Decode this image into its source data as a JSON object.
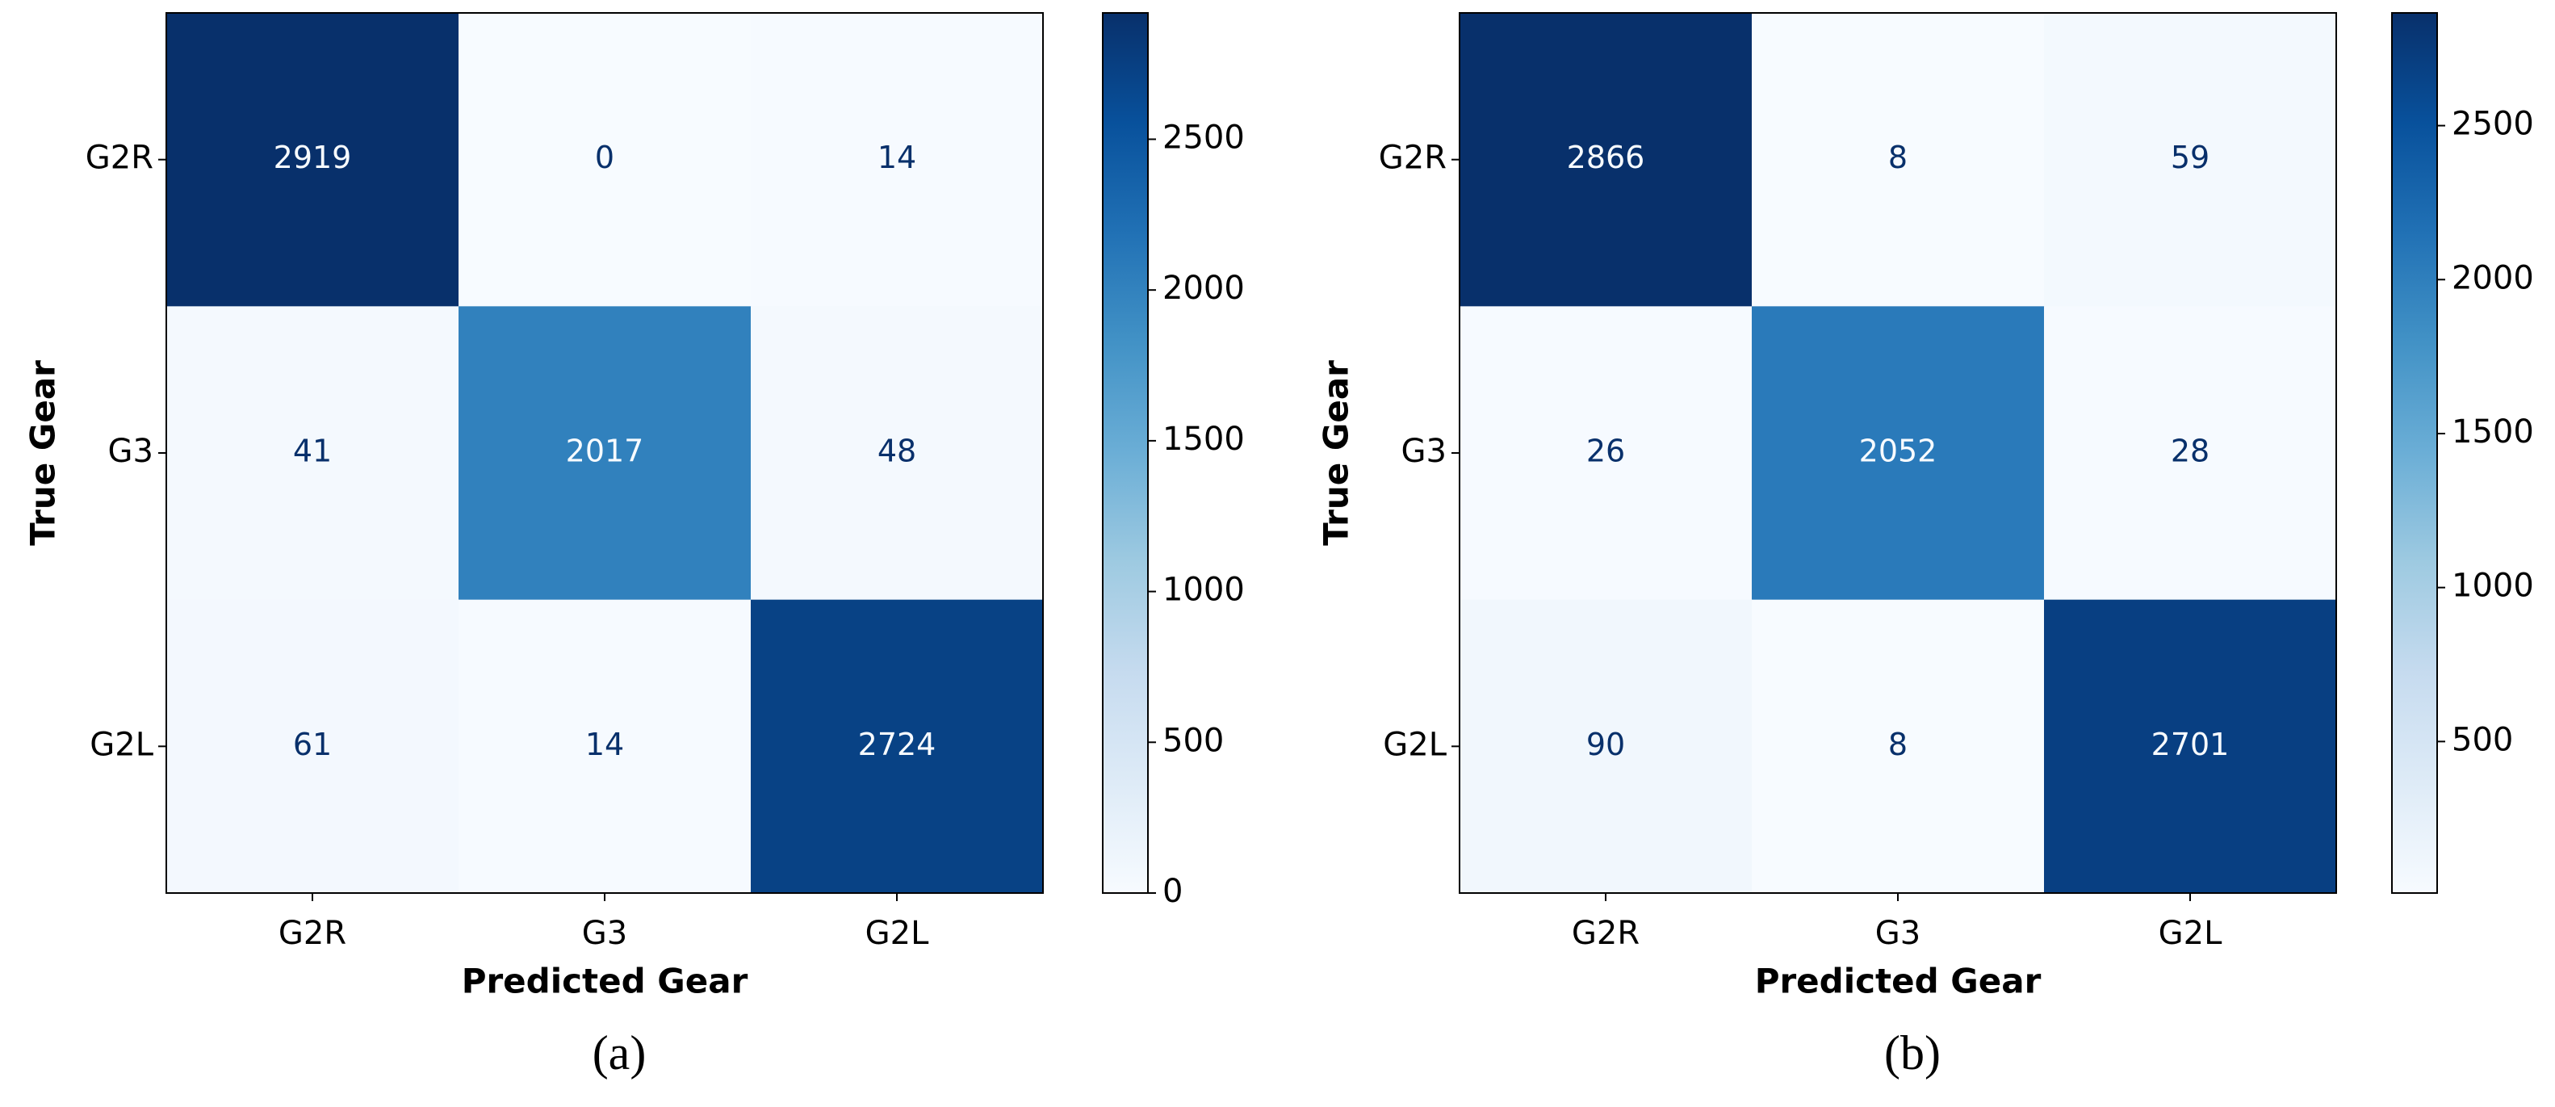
{
  "chart_data": [
    {
      "type": "heatmap",
      "x_categories": [
        "G2R",
        "G3",
        "G2L"
      ],
      "y_categories": [
        "G2R",
        "G3",
        "G2L"
      ],
      "values": [
        [
          2919,
          0,
          14
        ],
        [
          41,
          2017,
          48
        ],
        [
          61,
          14,
          2724
        ]
      ],
      "xlabel": "Predicted Gear",
      "ylabel": "True Gear",
      "caption": "(a)",
      "colormap": "Blues",
      "zlim": [
        0,
        2919
      ],
      "zticks": [
        0,
        500,
        1000,
        1500,
        2000,
        2500
      ]
    },
    {
      "type": "heatmap",
      "x_categories": [
        "G2R",
        "G3",
        "G2L"
      ],
      "y_categories": [
        "G2R",
        "G3",
        "G2L"
      ],
      "values": [
        [
          2866,
          8,
          59
        ],
        [
          26,
          2052,
          28
        ],
        [
          90,
          8,
          2701
        ]
      ],
      "xlabel": "Predicted Gear",
      "ylabel": "True Gear",
      "caption": "(b)",
      "colormap": "Blues",
      "zlim": [
        8,
        2866
      ],
      "zticks": [
        500,
        1000,
        1500,
        2000,
        2500
      ]
    }
  ]
}
